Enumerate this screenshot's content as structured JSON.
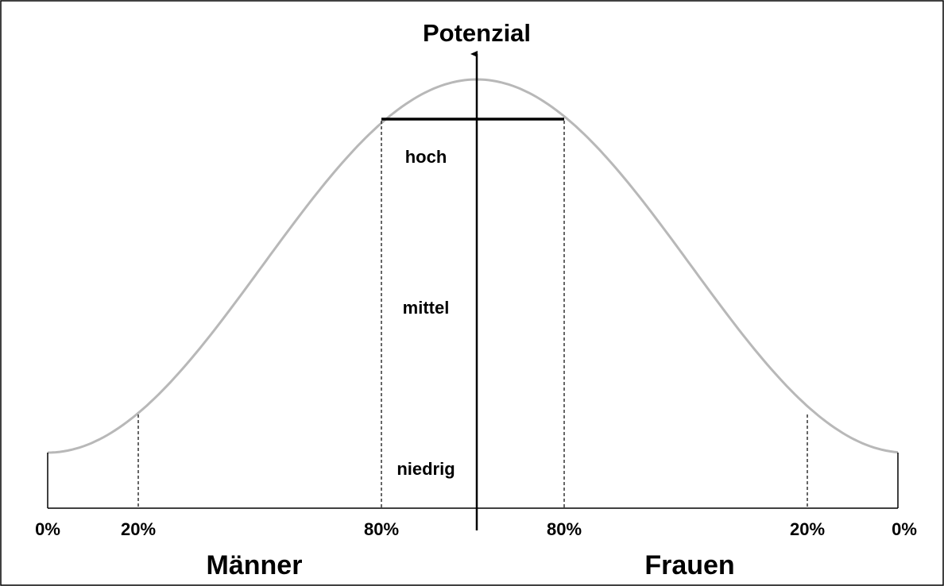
{
  "axis_label": "Potenzial",
  "levels": [
    "hoch",
    "mittel",
    "niedrig"
  ],
  "x_labels": [
    "0%",
    "20%",
    "80%",
    "80%",
    "20%",
    "0%"
  ],
  "groups": [
    "Männer",
    "Frauen"
  ]
}
